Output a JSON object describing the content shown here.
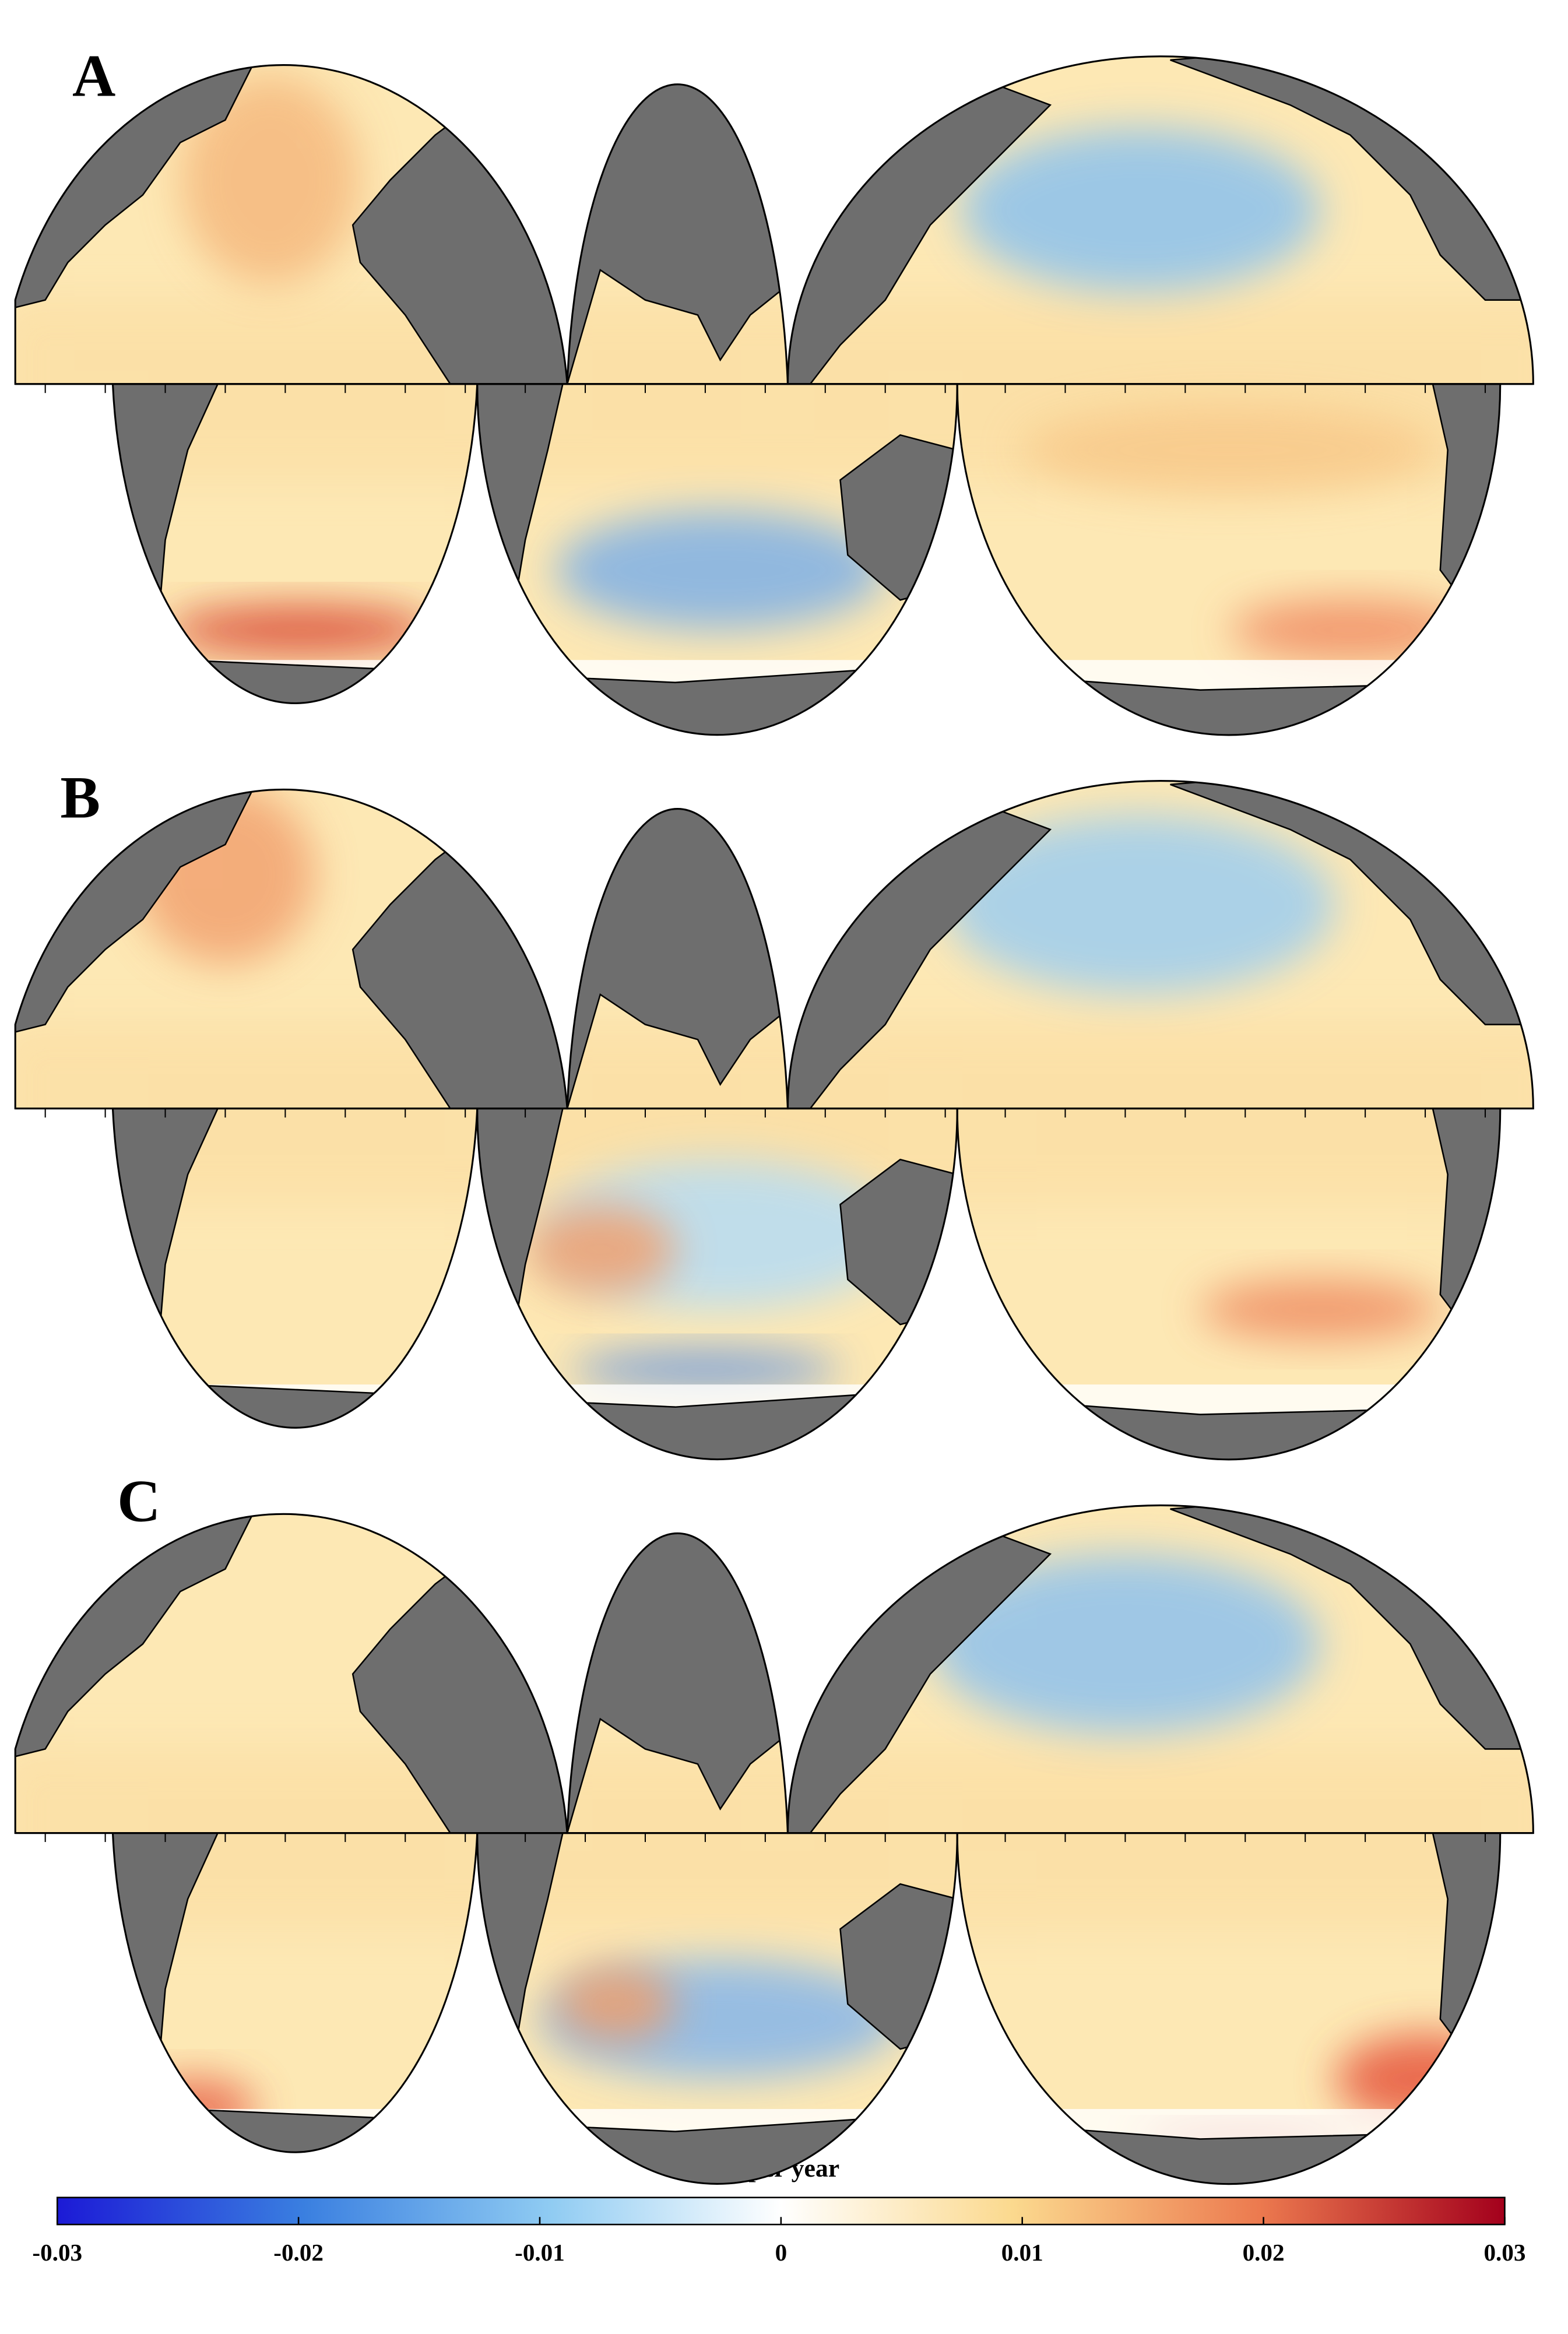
{
  "panels": [
    {
      "label": "A"
    },
    {
      "label": "B"
    },
    {
      "label": "C"
    }
  ],
  "colorbar": {
    "label": "m per year",
    "lim": [
      -0.03,
      0.03
    ],
    "ticks": [
      -0.03,
      -0.02,
      -0.01,
      0,
      0.01,
      0.02,
      0.03
    ]
  }
}
